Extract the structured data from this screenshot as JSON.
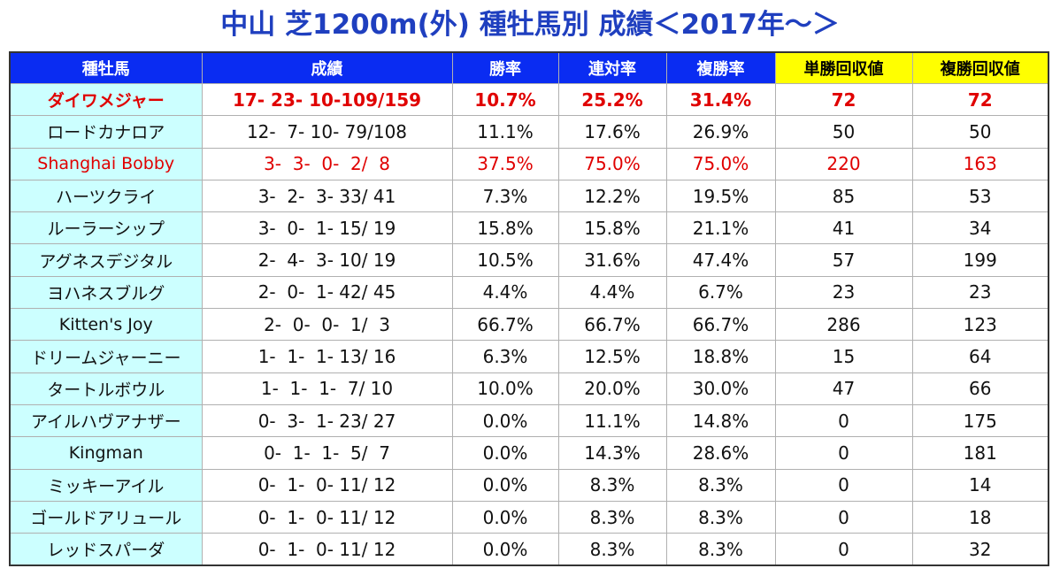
{
  "header": {
    "title": "中山 芝1200m(外) 種牡馬別 成績＜2017年～＞"
  },
  "table": {
    "columns": [
      "種牡馬",
      "成績",
      "勝率",
      "連対率",
      "複勝率",
      "単勝回収値",
      "複勝回収値"
    ],
    "rows": [
      [
        "ダイワメジャー",
        "17- 23- 10-109/159",
        "10.7%",
        "25.2%",
        "31.4%",
        "72",
        "72"
      ],
      [
        "ロードカナロア",
        "12-  7- 10- 79/108",
        "11.1%",
        "17.6%",
        "26.9%",
        "50",
        "50"
      ],
      [
        "Shanghai Bobby",
        "3-  3-  0-  2/  8",
        "37.5%",
        "75.0%",
        "75.0%",
        "220",
        "163"
      ],
      [
        "ハーツクライ",
        "3-  2-  3- 33/ 41",
        "7.3%",
        "12.2%",
        "19.5%",
        "85",
        "53"
      ],
      [
        "ルーラーシップ",
        "3-  0-  1- 15/ 19",
        "15.8%",
        "15.8%",
        "21.1%",
        "41",
        "34"
      ],
      [
        "アグネスデジタル",
        "2-  4-  3- 10/ 19",
        "10.5%",
        "31.6%",
        "47.4%",
        "57",
        "199"
      ],
      [
        "ヨハネスブルグ",
        "2-  0-  1- 42/ 45",
        "4.4%",
        "4.4%",
        "6.7%",
        "23",
        "23"
      ],
      [
        "Kitten's Joy",
        "2-  0-  0-  1/  3",
        "66.7%",
        "66.7%",
        "66.7%",
        "286",
        "123"
      ],
      [
        "ドリームジャーニー",
        "1-  1-  1- 13/ 16",
        "6.3%",
        "12.5%",
        "18.8%",
        "15",
        "64"
      ],
      [
        "タートルボウル",
        "1-  1-  1-  7/ 10",
        "10.0%",
        "20.0%",
        "30.0%",
        "47",
        "66"
      ],
      [
        "アイルハヴアナザー",
        "0-  3-  1- 23/ 27",
        "0.0%",
        "11.1%",
        "14.8%",
        "0",
        "175"
      ],
      [
        "Kingman",
        "0-  1-  1-  5/  7",
        "0.0%",
        "14.3%",
        "28.6%",
        "0",
        "181"
      ],
      [
        "ミッキーアイル",
        "0-  1-  0- 11/ 12",
        "0.0%",
        "8.3%",
        "8.3%",
        "0",
        "14"
      ],
      [
        "ゴールドアリュール",
        "0-  1-  0- 11/ 12",
        "0.0%",
        "8.3%",
        "8.3%",
        "0",
        "18"
      ],
      [
        "レッドスパーダ",
        "0-  1-  0- 11/ 12",
        "0.0%",
        "8.3%",
        "8.3%",
        "0",
        "32"
      ]
    ]
  }
}
